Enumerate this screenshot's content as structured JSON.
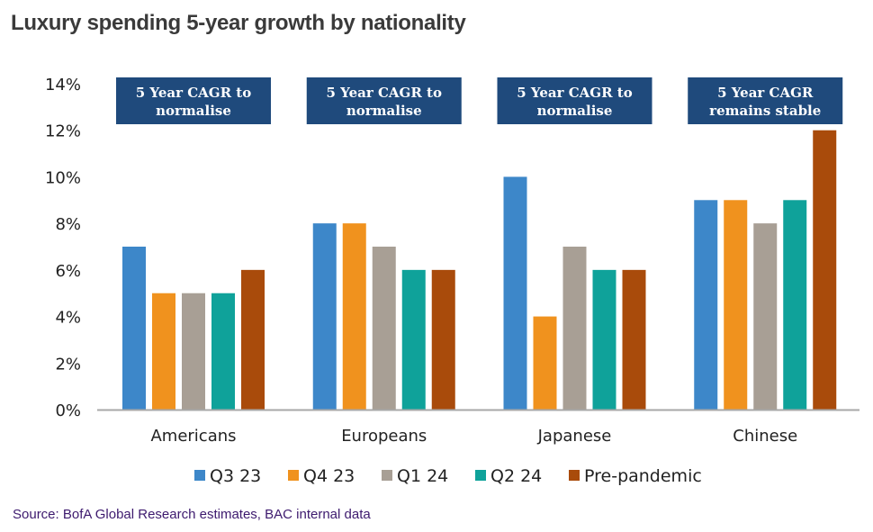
{
  "page": {
    "title": "Luxury spending 5-year growth by nationality",
    "source": "Source: BofA Global Research estimates, BAC internal data"
  },
  "chart_data": {
    "type": "bar",
    "title": "Luxury spending 5-year growth by nationality",
    "categories": [
      "Americans",
      "Europeans",
      "Japanese",
      "Chinese"
    ],
    "series": [
      {
        "name": "Q3 23",
        "color": "#3d87c9",
        "values": [
          7,
          8,
          10,
          9
        ]
      },
      {
        "name": "Q4 23",
        "color": "#f0921e",
        "values": [
          5,
          8,
          4,
          9
        ]
      },
      {
        "name": "Q1 24",
        "color": "#a89f95",
        "values": [
          5,
          7,
          7,
          8
        ]
      },
      {
        "name": "Q2 24",
        "color": "#0fa29a",
        "values": [
          5,
          6,
          6,
          9
        ]
      },
      {
        "name": "Pre-pandemic",
        "color": "#a94b0b",
        "values": [
          6,
          6,
          6,
          12
        ]
      }
    ],
    "ylim": [
      0,
      14
    ],
    "yticks": [
      "0%",
      "2%",
      "4%",
      "6%",
      "8%",
      "10%",
      "12%",
      "14%"
    ],
    "xlabel": "",
    "ylabel": "",
    "legend_position": "bottom",
    "annotations": [
      {
        "category": "Americans",
        "line1": "5 Year CAGR  to",
        "line2": "normalise"
      },
      {
        "category": "Europeans",
        "line1": "5 Year CAGR  to",
        "line2": "normalise"
      },
      {
        "category": "Japanese",
        "line1": "5 Year CAGR  to",
        "line2": "normalise"
      },
      {
        "category": "Chinese",
        "line1": "5 Year CAGR",
        "line2": "remains stable"
      }
    ],
    "annotation_color": "#1f4a7c"
  }
}
